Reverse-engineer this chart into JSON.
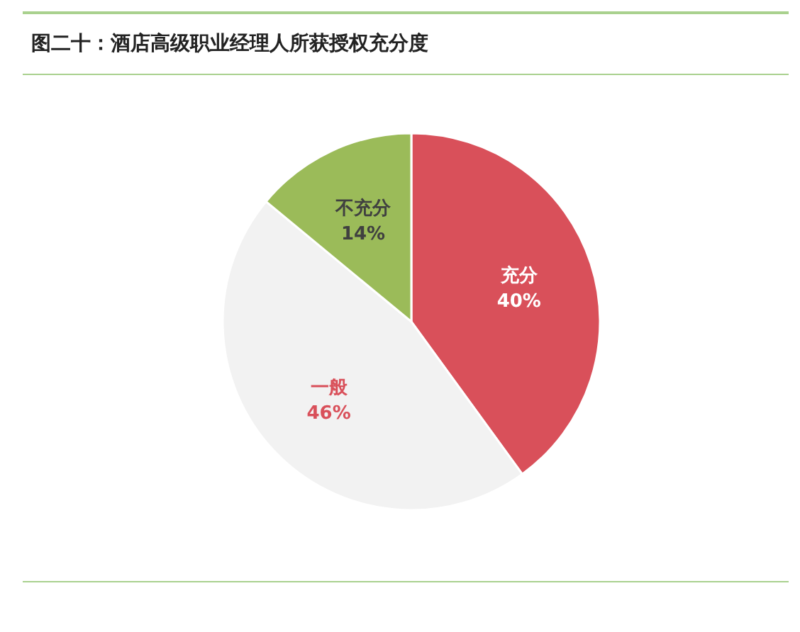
{
  "chart_data": {
    "type": "pie",
    "title": "图二十：酒店高级职业经理人所获授权充分度",
    "categories": [
      "充分",
      "一般",
      "不充分"
    ],
    "values": [
      40,
      46,
      14
    ],
    "colors": [
      "#d9505a",
      "#f2f2f2",
      "#9bbb59"
    ],
    "value_labels": [
      "40%",
      "46%",
      "14%"
    ],
    "legend": false
  }
}
